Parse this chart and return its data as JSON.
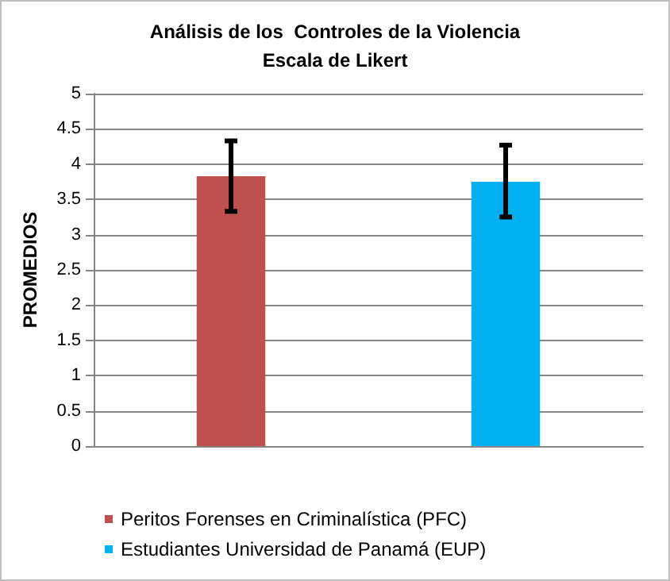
{
  "chart_data": {
    "type": "bar",
    "title": "Análisis de los  Controles de la Violencia",
    "subtitle": "Escala de Likert",
    "ylabel": "PROMEDIOS",
    "categories": [
      null,
      null
    ],
    "series": [
      {
        "name": "Peritos Forenses en Criminalística (PFC)",
        "color": "#c0504d",
        "values": [
          3.83,
          null
        ],
        "errors": [
          [
            3.33,
            4.33
          ],
          null
        ]
      },
      {
        "name": "Estudiantes Universidad de Panamá (EUP)",
        "color": "#00b0f0",
        "values": [
          null,
          3.75
        ],
        "errors": [
          null,
          [
            3.25,
            4.27
          ]
        ]
      }
    ],
    "ylim": [
      0,
      5
    ],
    "yticks": [
      0,
      0.5,
      1,
      1.5,
      2,
      2.5,
      3,
      3.5,
      4,
      4.5,
      5
    ],
    "grid": "y",
    "legend": "bottom"
  }
}
